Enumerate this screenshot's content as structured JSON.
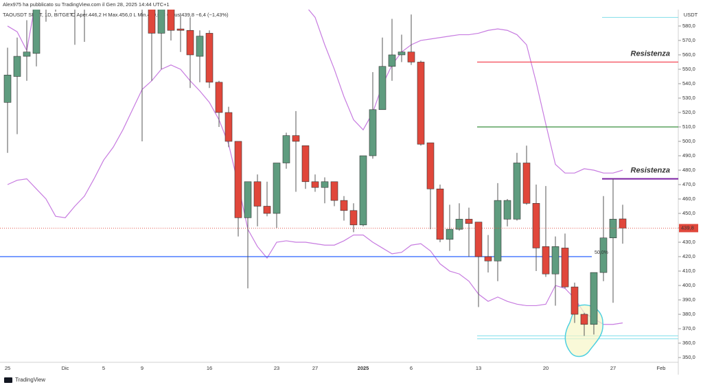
{
  "header": {
    "author": "Alex975 ha pubblicato su TradingView.com il Gen 28, 2025 14:44 UTC+1",
    "footer": "TradingView"
  },
  "chart_data": {
    "type": "candlestick",
    "title": "TAOUSDT SPOT, 1D, BITGET",
    "subtitle": "O Aper.446,2  H Max.456,0  L Min.429,0  C Chius.439,8  −6,4 (−1,43%)",
    "y_unit": "USDT",
    "categories": [
      "25",
      null,
      null,
      null,
      null,
      null,
      "Dic",
      null,
      null,
      null,
      "5",
      null,
      null,
      null,
      "9",
      null,
      null,
      null,
      null,
      null,
      null,
      "16",
      null,
      null,
      null,
      null,
      null,
      null,
      "23",
      null,
      null,
      null,
      "27",
      null,
      null,
      null,
      null,
      "2025",
      null,
      null,
      null,
      null,
      "6",
      null,
      null,
      null,
      null,
      null,
      null,
      "13",
      null,
      null,
      null,
      null,
      null,
      null,
      "20",
      null,
      null,
      null,
      null,
      null,
      null,
      "27",
      null,
      null,
      null,
      null,
      "Feb",
      null
    ],
    "open": [
      527,
      545,
      559,
      561,
      596,
      600,
      605,
      598,
      602,
      596,
      603,
      600,
      604,
      598,
      601,
      598,
      575,
      596,
      578,
      577,
      559,
      575,
      541,
      520,
      500,
      447,
      472,
      455,
      450,
      485,
      504,
      497,
      472,
      468,
      472,
      459,
      452,
      442,
      490,
      522,
      552,
      560,
      562,
      555,
      499,
      467,
      432,
      439,
      446,
      444,
      420,
      417,
      446,
      446,
      485,
      457,
      427,
      408,
      426,
      399,
      380,
      373,
      409,
      433,
      446.2,
      null,
      null,
      null,
      null,
      null
    ],
    "high": [
      565,
      572,
      584,
      600,
      605,
      612,
      615,
      607,
      610,
      606,
      612,
      608,
      610,
      606,
      612,
      605,
      608,
      600,
      589,
      586,
      577,
      577,
      542,
      524,
      500,
      472,
      477,
      472,
      485,
      506,
      521,
      497,
      477,
      475,
      472,
      462,
      457,
      490,
      548,
      572,
      585,
      574,
      588,
      556,
      499,
      470,
      456,
      457,
      454,
      444,
      435,
      471,
      460,
      492,
      497,
      470,
      469,
      434,
      436,
      402,
      381,
      409,
      462,
      474,
      456,
      null,
      null,
      null,
      null,
      null
    ],
    "low": [
      492,
      505,
      542,
      552,
      583,
      590,
      592,
      567,
      569,
      592,
      594,
      593,
      595,
      592,
      500,
      542,
      550,
      570,
      562,
      537,
      541,
      537,
      510,
      496,
      434,
      398,
      441,
      448,
      440,
      481,
      465,
      467,
      465,
      457,
      455,
      445,
      437,
      441,
      488,
      522,
      542,
      555,
      553,
      497,
      439,
      430,
      424,
      438,
      420,
      385,
      409,
      403,
      441,
      445,
      456,
      410,
      406,
      386,
      398,
      374,
      365,
      366,
      403,
      388,
      429,
      null,
      null,
      null,
      null,
      null
    ],
    "close": [
      546,
      559,
      562,
      596,
      600,
      605,
      598,
      602,
      596,
      603,
      600,
      604,
      598,
      601,
      598,
      575,
      600,
      577,
      577,
      560,
      573,
      541,
      520,
      500,
      447,
      472,
      455,
      450,
      485,
      504,
      500,
      472,
      468,
      472,
      459,
      452,
      442,
      490,
      522,
      552,
      560,
      562,
      555,
      498,
      467,
      432,
      439,
      446,
      443,
      420,
      417,
      459,
      459,
      485,
      457,
      426,
      408,
      427,
      399,
      380,
      373,
      409,
      433,
      446,
      439.8,
      null,
      null,
      null,
      null,
      null
    ],
    "up_color": "#5f9c7f",
    "down_color": "#e0473b",
    "bands": {
      "color": "#c77be0",
      "upper": [
        580,
        576,
        563,
        600,
        610,
        620,
        630,
        640,
        645,
        650,
        650,
        648,
        645,
        640,
        635,
        630,
        625,
        620,
        615,
        612,
        610,
        608,
        606,
        604,
        603,
        602,
        601,
        600,
        598,
        597,
        596,
        594,
        586,
        567,
        550,
        531,
        515,
        508,
        520,
        539,
        553,
        562,
        567,
        570,
        571,
        572,
        573,
        574,
        574,
        575,
        577,
        578,
        577,
        574,
        567,
        541,
        512,
        484,
        478,
        478,
        481,
        480,
        478,
        478,
        480,
        null,
        null,
        null,
        null,
        null
      ],
      "lower": [
        470,
        473,
        474,
        467,
        460,
        448,
        447,
        455,
        462,
        474,
        487,
        496,
        508,
        522,
        536,
        542,
        550,
        553,
        550,
        542,
        535,
        527,
        515,
        498,
        470,
        439,
        427,
        419,
        430,
        431,
        430,
        430,
        429,
        428,
        428,
        431,
        435,
        435,
        430,
        426,
        422,
        423,
        428,
        429,
        424,
        415,
        410,
        408,
        403,
        394,
        389,
        392,
        389,
        387,
        386,
        386,
        387,
        400,
        398,
        391,
        381,
        377,
        373,
        373,
        374,
        null,
        null,
        null,
        null,
        null
      ]
    },
    "levels": [
      {
        "value": 555,
        "color": "#f23645",
        "label": "Resistenza"
      },
      {
        "value": 510,
        "color": "#388e3c"
      },
      {
        "value": 474,
        "color": "#7b1fa2",
        "label": "Resistenza"
      },
      {
        "value": 420,
        "color": "#2962ff",
        "label": "50,0%"
      },
      {
        "value": 586,
        "color": "#80deea"
      },
      {
        "value": 365,
        "color": "#80deea"
      },
      {
        "value": 363,
        "color": "#80deea"
      }
    ],
    "last_price": {
      "value": 439.8,
      "label": "439,8",
      "color": "#e0473b"
    },
    "ylim": [
      346.7,
      591.4
    ],
    "yticks": [
      {
        "value": 350,
        "label": "350,0"
      },
      {
        "value": 360,
        "label": "360,0"
      },
      {
        "value": 370,
        "label": "370,0"
      },
      {
        "value": 380,
        "label": "380,0"
      },
      {
        "value": 390,
        "label": "390,0"
      },
      {
        "value": 400,
        "label": "400,0"
      },
      {
        "value": 410,
        "label": "410,0"
      },
      {
        "value": 420,
        "label": "420,0"
      },
      {
        "value": 430,
        "label": "430,0"
      },
      {
        "value": 440,
        "label": "440,0"
      },
      {
        "value": 450,
        "label": "450,0"
      },
      {
        "value": 460,
        "label": "460,0"
      },
      {
        "value": 470,
        "label": "470,0"
      },
      {
        "value": 480,
        "label": "480,0"
      },
      {
        "value": 490,
        "label": "490,0"
      },
      {
        "value": 500,
        "label": "500,0"
      },
      {
        "value": 510,
        "label": "510,0"
      },
      {
        "value": 520,
        "label": "520,0"
      },
      {
        "value": 530,
        "label": "530,0"
      },
      {
        "value": 540,
        "label": "540,0"
      },
      {
        "value": 550,
        "label": "550,0"
      },
      {
        "value": 560,
        "label": "560,0"
      },
      {
        "value": 570,
        "label": "570,0"
      },
      {
        "value": 580,
        "label": "580,0"
      }
    ]
  }
}
